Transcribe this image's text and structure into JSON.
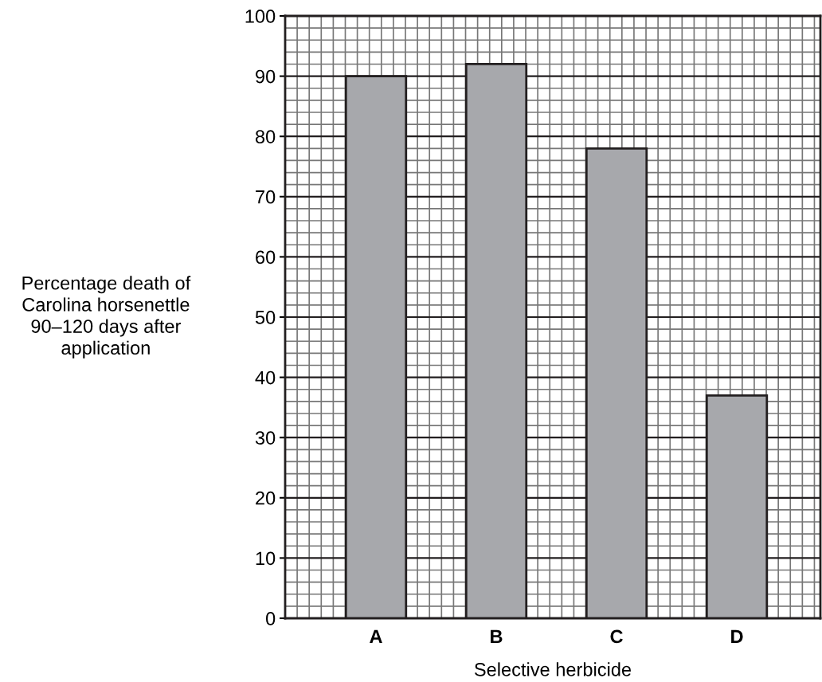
{
  "chart_data": {
    "type": "bar",
    "xlabel": "Selective herbicide",
    "ylabel": "Percentage death of\nCarolina horsenettle\n90–120 days after\napplication",
    "categories": [
      "A",
      "B",
      "C",
      "D"
    ],
    "values": [
      90,
      92,
      78,
      37
    ],
    "color": "#a7a8ac",
    "ylim": [
      0,
      100
    ],
    "yticks": [
      0,
      10,
      20,
      30,
      40,
      50,
      60,
      70,
      80,
      90,
      100
    ],
    "grid": true
  }
}
